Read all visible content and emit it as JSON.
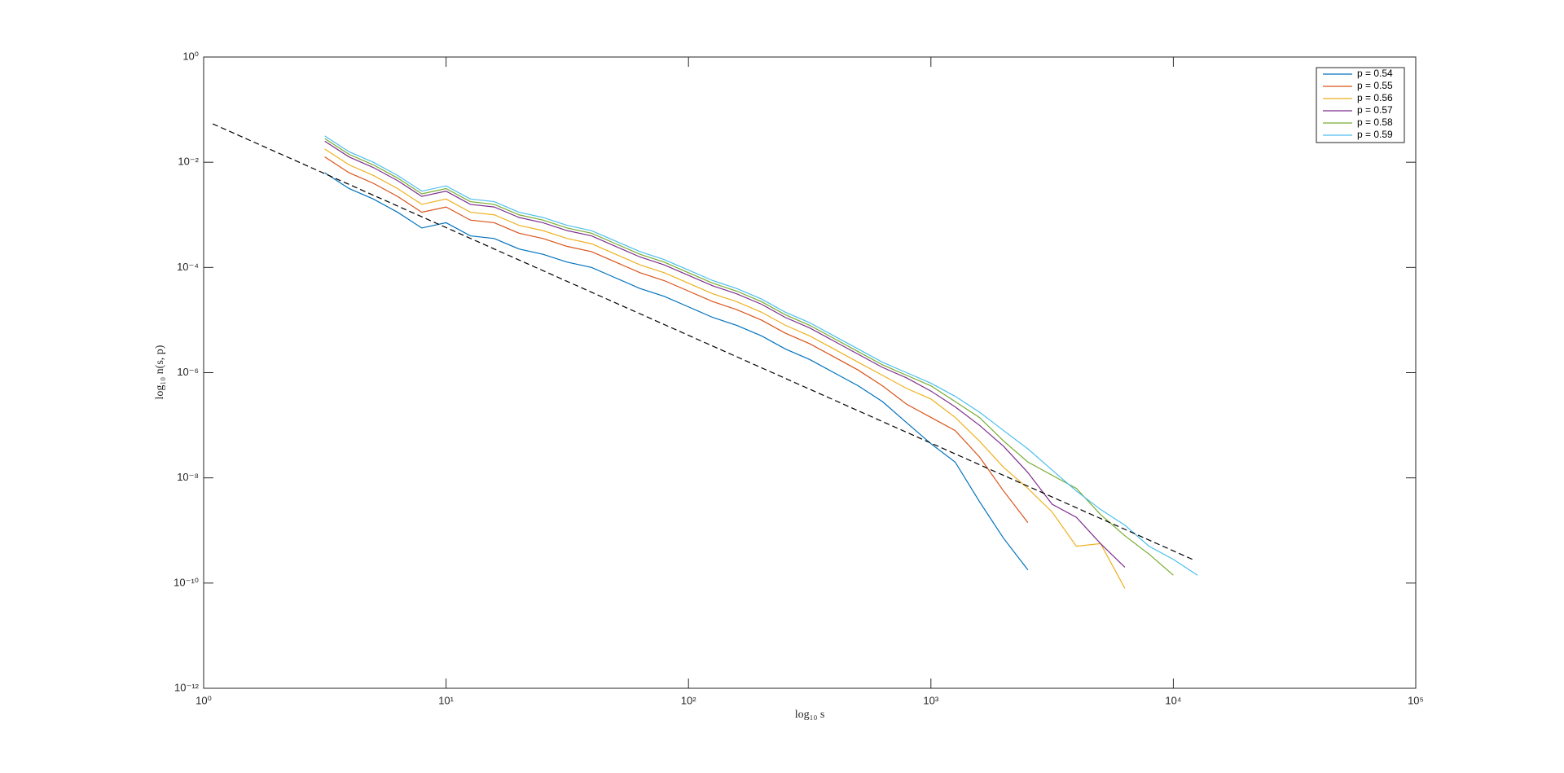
{
  "chart_data": {
    "type": "line",
    "xlabel": "log₁₀ s",
    "ylabel": "log₁₀ n(s, p)",
    "xscale": "log",
    "yscale": "log",
    "xlim": [
      1,
      100000
    ],
    "ylim": [
      1e-12,
      1
    ],
    "xticks": [
      {
        "value": 1,
        "label": "10⁰"
      },
      {
        "value": 10,
        "label": "10¹"
      },
      {
        "value": 100,
        "label": "10²"
      },
      {
        "value": 1000,
        "label": "10³"
      },
      {
        "value": 10000,
        "label": "10⁴"
      },
      {
        "value": 100000,
        "label": "10⁵"
      }
    ],
    "yticks": [
      {
        "value": 1e-12,
        "label": "10⁻¹²"
      },
      {
        "value": 1e-10,
        "label": "10⁻¹⁰"
      },
      {
        "value": 1e-08,
        "label": "10⁻⁸"
      },
      {
        "value": 1e-06,
        "label": "10⁻⁶"
      },
      {
        "value": 0.0001,
        "label": "10⁻⁴"
      },
      {
        "value": 0.01,
        "label": "10⁻²"
      },
      {
        "value": 1,
        "label": "10⁰"
      }
    ],
    "grid": false,
    "legend_position": "northeast",
    "x": [
      3.16,
      3.98,
      5.01,
      6.31,
      7.94,
      10,
      12.6,
      15.8,
      20,
      25.1,
      31.6,
      39.8,
      50.1,
      63.1,
      79.4,
      100,
      126,
      158,
      200,
      251,
      316,
      398,
      501,
      631,
      794,
      1000,
      1259,
      1585,
      1995,
      2512,
      3162,
      3981,
      5012,
      6310,
      7943,
      10000,
      12589
    ],
    "series": [
      {
        "name": "p = 0.54",
        "color": "#0072BD",
        "values": [
          0.00631,
          0.00316,
          0.002,
          0.00112,
          0.000562,
          0.000708,
          0.000398,
          0.000355,
          0.000224,
          0.000178,
          0.000126,
          0.0001,
          6.31e-05,
          3.98e-05,
          2.82e-05,
          1.78e-05,
          1.12e-05,
          7.94e-06,
          5.01e-06,
          2.82e-06,
          1.78e-06,
          1e-06,
          5.62e-07,
          2.82e-07,
          1.12e-07,
          4.47e-08,
          2e-08,
          3.55e-09,
          7.08e-10,
          1.78e-10,
          null,
          null,
          null,
          null,
          null,
          null,
          null
        ]
      },
      {
        "name": "p = 0.55",
        "color": "#D95319",
        "values": [
          0.0126,
          0.00631,
          0.00398,
          0.00224,
          0.00112,
          0.00141,
          0.000794,
          0.000708,
          0.000447,
          0.000355,
          0.000251,
          0.0002,
          0.000126,
          7.94e-05,
          5.62e-05,
          3.55e-05,
          2.24e-05,
          1.58e-05,
          1e-05,
          5.62e-06,
          3.55e-06,
          2e-06,
          1.12e-06,
          5.62e-07,
          2.51e-07,
          1.41e-07,
          7.94e-08,
          2.51e-08,
          5.62e-09,
          1.41e-09,
          null,
          null,
          null,
          null,
          null,
          null,
          null
        ]
      },
      {
        "name": "p = 0.56",
        "color": "#EDB120",
        "values": [
          0.0178,
          0.00891,
          0.00562,
          0.00316,
          0.00158,
          0.002,
          0.00112,
          0.001,
          0.000631,
          0.000501,
          0.000355,
          0.000282,
          0.000178,
          0.000112,
          7.94e-05,
          5.01e-05,
          3.16e-05,
          2.24e-05,
          1.41e-05,
          7.94e-06,
          5.01e-06,
          2.82e-06,
          1.58e-06,
          8.91e-07,
          5.01e-07,
          3.16e-07,
          1.41e-07,
          5.01e-08,
          1.58e-08,
          6.31e-09,
          2.24e-09,
          5.01e-10,
          5.62e-10,
          7.94e-11,
          null,
          null,
          null
        ]
      },
      {
        "name": "p = 0.57",
        "color": "#7E2F8E",
        "values": [
          0.0251,
          0.0126,
          0.00794,
          0.00447,
          0.00224,
          0.00282,
          0.00158,
          0.00141,
          0.000891,
          0.000708,
          0.000501,
          0.000398,
          0.000251,
          0.000158,
          0.000112,
          7.08e-05,
          4.47e-05,
          3.16e-05,
          2e-05,
          1.12e-05,
          7.08e-06,
          3.98e-06,
          2.24e-06,
          1.26e-06,
          7.94e-07,
          4.47e-07,
          2.24e-07,
          1e-07,
          3.98e-08,
          1.26e-08,
          3.16e-09,
          1.78e-09,
          5.62e-10,
          2e-10,
          null,
          null,
          null
        ]
      },
      {
        "name": "p = 0.58",
        "color": "#77AC30",
        "values": [
          0.0282,
          0.0141,
          0.00891,
          0.00501,
          0.00251,
          0.00316,
          0.00178,
          0.00158,
          0.001,
          0.000794,
          0.000562,
          0.000447,
          0.000282,
          0.000178,
          0.000126,
          7.94e-05,
          5.01e-05,
          3.55e-05,
          2.24e-05,
          1.26e-05,
          7.94e-06,
          4.47e-06,
          2.51e-06,
          1.41e-06,
          8.91e-07,
          5.62e-07,
          2.82e-07,
          1.41e-07,
          5.01e-08,
          2e-08,
          1.12e-08,
          6.31e-09,
          2e-09,
          7.94e-10,
          3.55e-10,
          1.41e-10,
          null
        ]
      },
      {
        "name": "p = 0.59",
        "color": "#4DBEEE",
        "values": [
          0.0316,
          0.0158,
          0.01,
          0.00562,
          0.00282,
          0.00355,
          0.002,
          0.00178,
          0.00112,
          0.000891,
          0.000631,
          0.000501,
          0.000316,
          0.0002,
          0.000141,
          8.91e-05,
          5.62e-05,
          3.98e-05,
          2.51e-05,
          1.41e-05,
          8.91e-06,
          5.01e-06,
          2.82e-06,
          1.58e-06,
          1e-06,
          6.31e-07,
          3.55e-07,
          1.78e-07,
          7.94e-08,
          3.55e-08,
          1.41e-08,
          5.62e-09,
          2.51e-09,
          1.26e-09,
          5.01e-10,
          2.82e-10,
          1.41e-10
        ]
      }
    ],
    "reference_line": {
      "x": [
        1.09,
        12000
      ],
      "values": [
        0.0537,
        2.82e-10
      ],
      "color": "#000000",
      "style": "dashed"
    }
  }
}
